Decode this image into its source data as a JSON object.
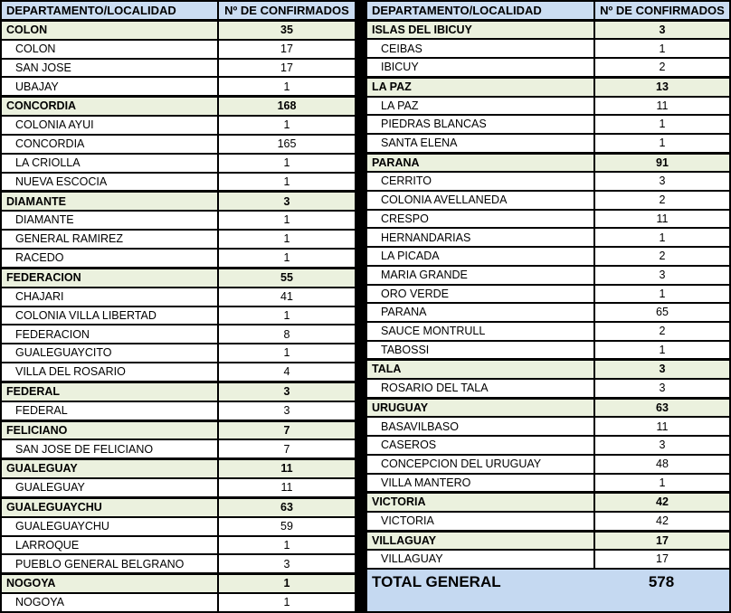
{
  "header": {
    "col1": "DEPARTAMENTO/LOCALIDAD",
    "col2": "Nº DE CONFIRMADOS"
  },
  "left_table": {
    "sections": [
      {
        "department": "COLON",
        "confirmed": 35,
        "localities": [
          {
            "name": "COLON",
            "confirmed": 17
          },
          {
            "name": "SAN JOSE",
            "confirmed": 17
          },
          {
            "name": "UBAJAY",
            "confirmed": 1
          }
        ]
      },
      {
        "department": "CONCORDIA",
        "confirmed": 168,
        "localities": [
          {
            "name": "COLONIA AYUI",
            "confirmed": 1
          },
          {
            "name": "CONCORDIA",
            "confirmed": 165
          },
          {
            "name": "LA CRIOLLA",
            "confirmed": 1
          },
          {
            "name": "NUEVA ESCOCIA",
            "confirmed": 1
          }
        ]
      },
      {
        "department": "DIAMANTE",
        "confirmed": 3,
        "localities": [
          {
            "name": "DIAMANTE",
            "confirmed": 1
          },
          {
            "name": "GENERAL RAMIREZ",
            "confirmed": 1
          },
          {
            "name": "RACEDO",
            "confirmed": 1
          }
        ]
      },
      {
        "department": "FEDERACION",
        "confirmed": 55,
        "localities": [
          {
            "name": "CHAJARI",
            "confirmed": 41
          },
          {
            "name": "COLONIA VILLA LIBERTAD",
            "confirmed": 1
          },
          {
            "name": "FEDERACION",
            "confirmed": 8
          },
          {
            "name": "GUALEGUAYCITO",
            "confirmed": 1
          },
          {
            "name": "VILLA DEL ROSARIO",
            "confirmed": 4
          }
        ]
      },
      {
        "department": "FEDERAL",
        "confirmed": 3,
        "localities": [
          {
            "name": "FEDERAL",
            "confirmed": 3
          }
        ]
      },
      {
        "department": "FELICIANO",
        "confirmed": 7,
        "localities": [
          {
            "name": "SAN JOSE DE FELICIANO",
            "confirmed": 7
          }
        ]
      },
      {
        "department": "GUALEGUAY",
        "confirmed": 11,
        "localities": [
          {
            "name": "GUALEGUAY",
            "confirmed": 11
          }
        ]
      },
      {
        "department": "GUALEGUAYCHU",
        "confirmed": 63,
        "localities": [
          {
            "name": "GUALEGUAYCHU",
            "confirmed": 59
          },
          {
            "name": "LARROQUE",
            "confirmed": 1
          },
          {
            "name": "PUEBLO GENERAL BELGRANO",
            "confirmed": 3
          }
        ]
      },
      {
        "department": "NOGOYA",
        "confirmed": 1,
        "localities": [
          {
            "name": "NOGOYA",
            "confirmed": 1
          }
        ]
      }
    ]
  },
  "right_table": {
    "sections": [
      {
        "department": "ISLAS DEL IBICUY",
        "confirmed": 3,
        "localities": [
          {
            "name": "CEIBAS",
            "confirmed": 1
          },
          {
            "name": "IBICUY",
            "confirmed": 2
          }
        ]
      },
      {
        "department": "LA PAZ",
        "confirmed": 13,
        "localities": [
          {
            "name": "LA PAZ",
            "confirmed": 11
          },
          {
            "name": "PIEDRAS BLANCAS",
            "confirmed": 1
          },
          {
            "name": "SANTA ELENA",
            "confirmed": 1
          }
        ]
      },
      {
        "department": "PARANA",
        "confirmed": 91,
        "localities": [
          {
            "name": "CERRITO",
            "confirmed": 3
          },
          {
            "name": "COLONIA AVELLANEDA",
            "confirmed": 2
          },
          {
            "name": "CRESPO",
            "confirmed": 11
          },
          {
            "name": "HERNANDARIAS",
            "confirmed": 1
          },
          {
            "name": "LA PICADA",
            "confirmed": 2
          },
          {
            "name": "MARIA GRANDE",
            "confirmed": 3
          },
          {
            "name": "ORO VERDE",
            "confirmed": 1
          },
          {
            "name": "PARANA",
            "confirmed": 65
          },
          {
            "name": "SAUCE MONTRULL",
            "confirmed": 2
          },
          {
            "name": "TABOSSI",
            "confirmed": 1
          }
        ]
      },
      {
        "department": "TALA",
        "confirmed": 3,
        "localities": [
          {
            "name": "ROSARIO DEL TALA",
            "confirmed": 3
          }
        ]
      },
      {
        "department": "URUGUAY",
        "confirmed": 63,
        "localities": [
          {
            "name": "BASAVILBASO",
            "confirmed": 11
          },
          {
            "name": "CASEROS",
            "confirmed": 3
          },
          {
            "name": "CONCEPCION DEL URUGUAY",
            "confirmed": 48
          },
          {
            "name": "VILLA MANTERO",
            "confirmed": 1
          }
        ]
      },
      {
        "department": "VICTORIA",
        "confirmed": 42,
        "localities": [
          {
            "name": "VICTORIA",
            "confirmed": 42
          }
        ]
      },
      {
        "department": "VILLAGUAY",
        "confirmed": 17,
        "localities": [
          {
            "name": "VILLAGUAY",
            "confirmed": 17
          }
        ]
      }
    ]
  },
  "total": {
    "label": "TOTAL GENERAL",
    "value": 578
  },
  "colors": {
    "header_bg": "#CBDDF2",
    "department_bg": "#EBF1DE",
    "total_bg": "#C5D9F1",
    "border": "#000000",
    "row_bg": "#FFFFFF"
  }
}
